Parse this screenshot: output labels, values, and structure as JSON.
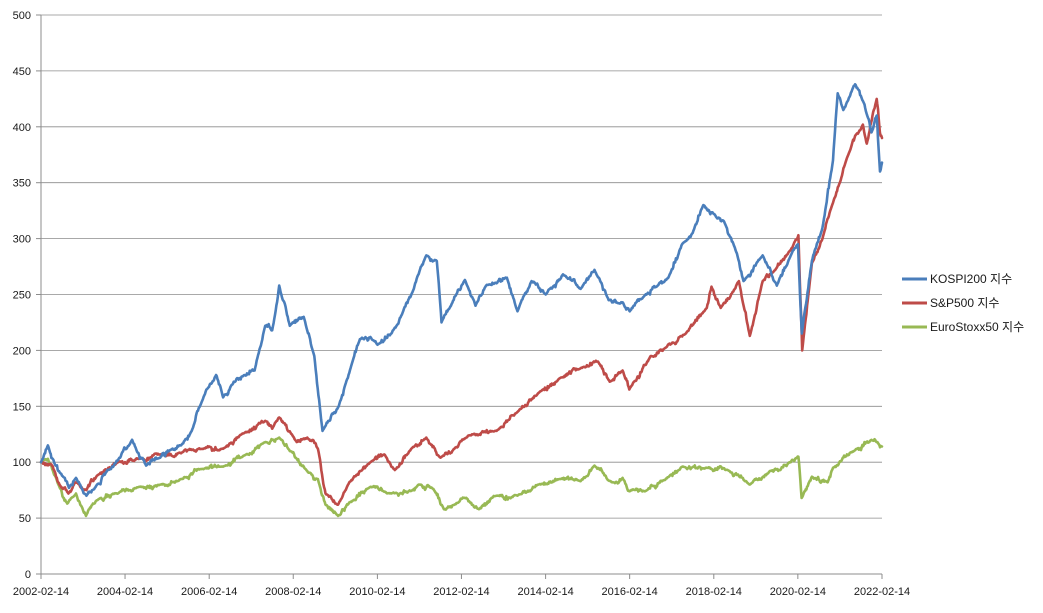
{
  "chart_data": {
    "type": "line",
    "title": "",
    "xlabel": "",
    "ylabel": "",
    "ylim": [
      0,
      500
    ],
    "yticks": [
      0,
      50,
      100,
      150,
      200,
      250,
      300,
      350,
      400,
      450,
      500
    ],
    "xlim": [
      "2002-02-14",
      "2022-02-14"
    ],
    "xticks": [
      "2002-02-14",
      "2004-02-14",
      "2006-02-14",
      "2008-02-14",
      "2010-02-14",
      "2012-02-14",
      "2014-02-14",
      "2016-02-14",
      "2018-02-14",
      "2020-02-14",
      "2022-02-14"
    ],
    "grid": "horizontal",
    "legend_position": "right",
    "series": [
      {
        "name": "KOSPI200 지수",
        "color": "#4a7ebb",
        "points": [
          [
            "2002-02-14",
            100
          ],
          [
            "2002-04-15",
            115
          ],
          [
            "2002-06-15",
            98
          ],
          [
            "2002-08-15",
            88
          ],
          [
            "2002-10-15",
            77
          ],
          [
            "2002-12-15",
            86
          ],
          [
            "2003-03-15",
            70
          ],
          [
            "2003-06-15",
            80
          ],
          [
            "2003-09-15",
            93
          ],
          [
            "2003-12-15",
            102
          ],
          [
            "2004-04-15",
            120
          ],
          [
            "2004-08-15",
            97
          ],
          [
            "2004-12-15",
            104
          ],
          [
            "2005-03-15",
            111
          ],
          [
            "2005-06-15",
            115
          ],
          [
            "2005-09-15",
            128
          ],
          [
            "2005-12-15",
            155
          ],
          [
            "2006-04-15",
            178
          ],
          [
            "2006-06-15",
            158
          ],
          [
            "2006-09-15",
            172
          ],
          [
            "2006-12-15",
            178
          ],
          [
            "2007-03-15",
            182
          ],
          [
            "2007-06-15",
            222
          ],
          [
            "2007-08-15",
            218
          ],
          [
            "2007-10-15",
            258
          ],
          [
            "2008-01-15",
            222
          ],
          [
            "2008-05-15",
            230
          ],
          [
            "2008-08-15",
            195
          ],
          [
            "2008-10-25",
            128
          ],
          [
            "2009-03-15",
            150
          ],
          [
            "2009-06-15",
            180
          ],
          [
            "2009-09-15",
            210
          ],
          [
            "2009-12-15",
            212
          ],
          [
            "2010-02-15",
            205
          ],
          [
            "2010-06-15",
            215
          ],
          [
            "2010-09-15",
            232
          ],
          [
            "2010-12-15",
            252
          ],
          [
            "2011-04-15",
            285
          ],
          [
            "2011-07-15",
            280
          ],
          [
            "2011-08-25",
            225
          ],
          [
            "2011-11-15",
            240
          ],
          [
            "2012-03-15",
            263
          ],
          [
            "2012-06-15",
            240
          ],
          [
            "2012-09-15",
            258
          ],
          [
            "2012-12-15",
            260
          ],
          [
            "2013-03-15",
            265
          ],
          [
            "2013-06-15",
            235
          ],
          [
            "2013-10-15",
            262
          ],
          [
            "2014-02-15",
            250
          ],
          [
            "2014-07-15",
            268
          ],
          [
            "2014-12-15",
            255
          ],
          [
            "2015-04-15",
            272
          ],
          [
            "2015-08-15",
            245
          ],
          [
            "2015-12-15",
            243
          ],
          [
            "2016-02-15",
            235
          ],
          [
            "2016-06-15",
            248
          ],
          [
            "2016-10-15",
            258
          ],
          [
            "2017-01-15",
            265
          ],
          [
            "2017-05-15",
            295
          ],
          [
            "2017-08-15",
            305
          ],
          [
            "2017-11-15",
            330
          ],
          [
            "2018-02-15",
            322
          ],
          [
            "2018-05-15",
            315
          ],
          [
            "2018-08-15",
            292
          ],
          [
            "2018-10-30",
            262
          ],
          [
            "2019-04-15",
            285
          ],
          [
            "2019-08-15",
            258
          ],
          [
            "2019-12-15",
            285
          ],
          [
            "2020-02-15",
            295
          ],
          [
            "2020-03-19",
            215
          ],
          [
            "2020-06-15",
            280
          ],
          [
            "2020-09-15",
            310
          ],
          [
            "2020-12-15",
            370
          ],
          [
            "2021-01-25",
            430
          ],
          [
            "2021-03-15",
            415
          ],
          [
            "2021-06-25",
            438
          ],
          [
            "2021-09-15",
            420
          ],
          [
            "2021-11-15",
            395
          ],
          [
            "2021-12-30",
            410
          ],
          [
            "2022-01-28",
            360
          ],
          [
            "2022-02-14",
            368
          ]
        ]
      },
      {
        "name": "S&P500 지수",
        "color": "#be4b48",
        "points": [
          [
            "2002-02-14",
            100
          ],
          [
            "2002-05-15",
            98
          ],
          [
            "2002-07-25",
            80
          ],
          [
            "2002-10-10",
            72
          ],
          [
            "2002-12-15",
            82
          ],
          [
            "2003-03-15",
            75
          ],
          [
            "2003-06-15",
            88
          ],
          [
            "2003-12-15",
            100
          ],
          [
            "2004-06-15",
            103
          ],
          [
            "2004-12-15",
            107
          ],
          [
            "2005-06-15",
            108
          ],
          [
            "2005-12-15",
            112
          ],
          [
            "2006-06-15",
            112
          ],
          [
            "2006-12-15",
            126
          ],
          [
            "2007-06-15",
            137
          ],
          [
            "2007-08-15",
            130
          ],
          [
            "2007-10-15",
            140
          ],
          [
            "2008-03-15",
            118
          ],
          [
            "2008-06-15",
            122
          ],
          [
            "2008-09-15",
            112
          ],
          [
            "2008-11-20",
            72
          ],
          [
            "2009-03-09",
            62
          ],
          [
            "2009-06-15",
            82
          ],
          [
            "2009-12-15",
            100
          ],
          [
            "2010-04-15",
            107
          ],
          [
            "2010-07-15",
            93
          ],
          [
            "2010-12-15",
            113
          ],
          [
            "2011-04-15",
            122
          ],
          [
            "2011-08-15",
            104
          ],
          [
            "2011-12-15",
            112
          ],
          [
            "2012-04-15",
            124
          ],
          [
            "2012-12-15",
            128
          ],
          [
            "2013-06-15",
            145
          ],
          [
            "2013-12-15",
            162
          ],
          [
            "2014-06-15",
            175
          ],
          [
            "2014-12-15",
            184
          ],
          [
            "2015-05-15",
            190
          ],
          [
            "2015-08-25",
            172
          ],
          [
            "2015-12-15",
            182
          ],
          [
            "2016-02-11",
            165
          ],
          [
            "2016-08-15",
            195
          ],
          [
            "2016-12-15",
            202
          ],
          [
            "2017-06-15",
            215
          ],
          [
            "2017-12-15",
            238
          ],
          [
            "2018-01-25",
            257
          ],
          [
            "2018-04-15",
            238
          ],
          [
            "2018-09-20",
            262
          ],
          [
            "2018-12-24",
            213
          ],
          [
            "2019-04-15",
            262
          ],
          [
            "2019-07-15",
            270
          ],
          [
            "2019-12-15",
            290
          ],
          [
            "2020-02-19",
            303
          ],
          [
            "2020-03-23",
            200
          ],
          [
            "2020-06-15",
            278
          ],
          [
            "2020-09-15",
            300
          ],
          [
            "2020-12-15",
            332
          ],
          [
            "2021-04-15",
            372
          ],
          [
            "2021-09-01",
            402
          ],
          [
            "2021-10-05",
            385
          ],
          [
            "2021-12-30",
            425
          ],
          [
            "2022-01-27",
            395
          ],
          [
            "2022-02-14",
            390
          ]
        ]
      },
      {
        "name": "EuroStoxx50 지수",
        "color": "#98b954",
        "points": [
          [
            "2002-02-14",
            100
          ],
          [
            "2002-04-15",
            103
          ],
          [
            "2002-07-15",
            80
          ],
          [
            "2002-09-30",
            63
          ],
          [
            "2002-12-15",
            72
          ],
          [
            "2003-03-12",
            52
          ],
          [
            "2003-06-15",
            66
          ],
          [
            "2003-12-15",
            72
          ],
          [
            "2004-06-15",
            78
          ],
          [
            "2004-12-15",
            80
          ],
          [
            "2005-06-15",
            85
          ],
          [
            "2005-12-15",
            94
          ],
          [
            "2006-06-15",
            96
          ],
          [
            "2006-12-15",
            106
          ],
          [
            "2007-06-15",
            118
          ],
          [
            "2007-10-15",
            122
          ],
          [
            "2008-01-15",
            110
          ],
          [
            "2008-06-15",
            92
          ],
          [
            "2008-09-15",
            85
          ],
          [
            "2008-11-20",
            62
          ],
          [
            "2009-03-09",
            52
          ],
          [
            "2009-06-15",
            64
          ],
          [
            "2009-12-15",
            78
          ],
          [
            "2010-06-15",
            72
          ],
          [
            "2010-12-15",
            75
          ],
          [
            "2011-02-15",
            80
          ],
          [
            "2011-06-15",
            76
          ],
          [
            "2011-09-15",
            58
          ],
          [
            "2011-12-15",
            62
          ],
          [
            "2012-03-15",
            68
          ],
          [
            "2012-07-15",
            58
          ],
          [
            "2012-12-15",
            70
          ],
          [
            "2013-06-15",
            70
          ],
          [
            "2013-12-15",
            80
          ],
          [
            "2014-06-15",
            85
          ],
          [
            "2014-12-15",
            83
          ],
          [
            "2015-04-15",
            97
          ],
          [
            "2015-09-15",
            82
          ],
          [
            "2015-12-15",
            86
          ],
          [
            "2016-02-11",
            74
          ],
          [
            "2016-06-27",
            74
          ],
          [
            "2016-12-15",
            84
          ],
          [
            "2017-05-15",
            96
          ],
          [
            "2017-12-15",
            95
          ],
          [
            "2018-06-15",
            93
          ],
          [
            "2018-12-24",
            80
          ],
          [
            "2019-06-15",
            92
          ],
          [
            "2019-12-15",
            100
          ],
          [
            "2020-02-19",
            105
          ],
          [
            "2020-03-18",
            68
          ],
          [
            "2020-06-15",
            87
          ],
          [
            "2020-10-30",
            82
          ],
          [
            "2020-12-15",
            95
          ],
          [
            "2021-06-15",
            110
          ],
          [
            "2021-11-15",
            120
          ],
          [
            "2022-01-05",
            118
          ],
          [
            "2022-02-14",
            114
          ]
        ]
      }
    ]
  }
}
